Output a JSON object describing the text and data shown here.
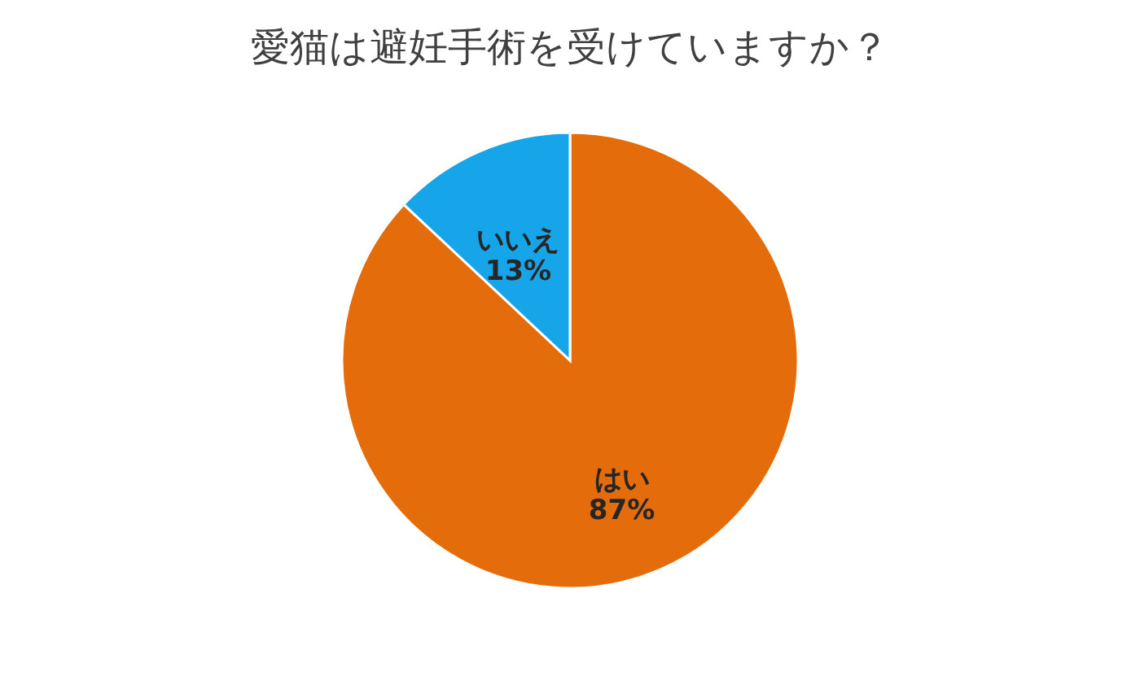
{
  "chart_data": {
    "type": "pie",
    "title": "愛猫は避妊手術を受けていますか？",
    "categories": [
      "はい",
      "いいえ"
    ],
    "values": [
      87,
      13
    ],
    "value_labels": [
      "87%",
      "13%"
    ],
    "colors": [
      "#e46c0a",
      "#17a5e9"
    ],
    "legend": false
  }
}
